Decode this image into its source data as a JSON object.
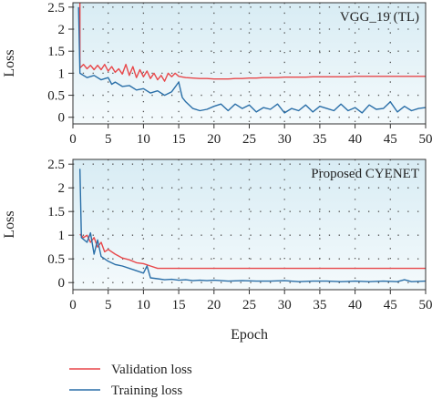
{
  "chart_data": [
    {
      "type": "line",
      "panel_label": "VGG_19 (TL)",
      "xlabel": "",
      "ylabel": "Loss",
      "xlim": [
        0,
        50
      ],
      "ylim": [
        -0.15,
        2.6
      ],
      "xticks": [
        0,
        5,
        10,
        15,
        20,
        25,
        30,
        35,
        40,
        45,
        50
      ],
      "yticks": [
        0,
        0.5,
        1,
        1.5,
        2,
        2.5
      ],
      "ytick_labels": [
        "0",
        "0.5",
        "1",
        "1.5",
        "2",
        "2.5"
      ],
      "grid": "dotted",
      "series": [
        {
          "name": "Validation loss",
          "color": "#e8474a",
          "x": [
            1,
            1,
            1.5,
            2,
            2.5,
            3,
            3.5,
            4,
            4.5,
            5,
            5.5,
            6,
            6.5,
            7,
            7.5,
            8,
            8.5,
            9,
            9.5,
            10,
            10.5,
            11,
            11.5,
            12,
            12.5,
            13,
            13.5,
            14,
            14.5,
            15,
            16,
            17,
            18,
            19,
            20,
            21,
            22,
            23,
            24,
            25,
            26,
            27,
            28,
            29,
            30,
            31,
            32,
            33,
            34,
            35,
            36,
            37,
            38,
            39,
            40,
            41,
            42,
            43,
            44,
            45,
            46,
            47,
            48,
            49,
            50
          ],
          "values": [
            2.6,
            1.12,
            1.2,
            1.1,
            1.18,
            1.08,
            1.18,
            1.08,
            1.2,
            1.05,
            1.15,
            1.02,
            1.1,
            0.98,
            1.2,
            0.95,
            1.15,
            0.9,
            1.08,
            0.92,
            1.05,
            0.88,
            1.0,
            0.85,
            0.95,
            0.82,
            1.0,
            0.92,
            1.0,
            0.93,
            0.9,
            0.89,
            0.88,
            0.88,
            0.87,
            0.87,
            0.87,
            0.88,
            0.88,
            0.89,
            0.89,
            0.9,
            0.9,
            0.9,
            0.91,
            0.91,
            0.91,
            0.91,
            0.92,
            0.92,
            0.92,
            0.92,
            0.92,
            0.92,
            0.93,
            0.93,
            0.93,
            0.93,
            0.93,
            0.93,
            0.93,
            0.93,
            0.93,
            0.93,
            0.93
          ]
        },
        {
          "name": "Training loss",
          "color": "#2a6fa8",
          "x": [
            0.8,
            1,
            2,
            3,
            4,
            5,
            5.5,
            6,
            7,
            8,
            9,
            10,
            11,
            12,
            13,
            14,
            15,
            15.5,
            16,
            17,
            18,
            19,
            20,
            21,
            22,
            23,
            24,
            25,
            26,
            27,
            28,
            29,
            30,
            31,
            32,
            33,
            34,
            35,
            36,
            37,
            38,
            39,
            40,
            41,
            42,
            43,
            44,
            45,
            46,
            47,
            48,
            49,
            50
          ],
          "values": [
            2.5,
            1.0,
            0.9,
            0.95,
            0.85,
            0.9,
            0.75,
            0.8,
            0.7,
            0.72,
            0.62,
            0.65,
            0.55,
            0.6,
            0.5,
            0.58,
            0.8,
            0.45,
            0.35,
            0.2,
            0.15,
            0.18,
            0.25,
            0.3,
            0.15,
            0.3,
            0.2,
            0.28,
            0.12,
            0.22,
            0.18,
            0.3,
            0.1,
            0.2,
            0.15,
            0.28,
            0.12,
            0.25,
            0.2,
            0.15,
            0.3,
            0.15,
            0.22,
            0.1,
            0.28,
            0.18,
            0.2,
            0.35,
            0.12,
            0.25,
            0.15,
            0.2,
            0.22
          ]
        }
      ]
    },
    {
      "type": "line",
      "panel_label": "Proposed CYENET",
      "xlabel": "Epoch",
      "ylabel": "Loss",
      "xlim": [
        0,
        50
      ],
      "ylim": [
        -0.15,
        2.6
      ],
      "xticks": [
        0,
        5,
        10,
        15,
        20,
        25,
        30,
        35,
        40,
        45,
        50
      ],
      "yticks": [
        0,
        0.5,
        1,
        1.5,
        2,
        2.5
      ],
      "ytick_labels": [
        "0",
        "0.5",
        "1",
        "1.5",
        "2",
        "2.5"
      ],
      "grid": "dotted",
      "series": [
        {
          "name": "Validation loss",
          "color": "#e8474a",
          "x": [
            1,
            1.5,
            2,
            2.5,
            3,
            3.5,
            4,
            4.5,
            5,
            6,
            7,
            8,
            9,
            10,
            11,
            12,
            13,
            14,
            15,
            16,
            18,
            20,
            25,
            30,
            35,
            40,
            45,
            50
          ],
          "values": [
            1.02,
            0.95,
            1.0,
            0.85,
            0.95,
            0.75,
            0.85,
            0.65,
            0.7,
            0.6,
            0.52,
            0.48,
            0.42,
            0.4,
            0.35,
            0.3,
            0.3,
            0.3,
            0.3,
            0.3,
            0.3,
            0.3,
            0.3,
            0.3,
            0.3,
            0.3,
            0.3,
            0.3
          ]
        },
        {
          "name": "Training loss",
          "color": "#2a6fa8",
          "x": [
            1,
            1.2,
            2,
            2.5,
            3,
            3.5,
            4,
            5,
            6,
            7,
            8,
            9,
            10,
            10.5,
            11,
            12,
            13,
            14,
            15,
            16,
            17,
            18,
            19,
            20,
            22,
            24,
            26,
            28,
            30,
            32,
            34,
            36,
            38,
            40,
            42,
            44,
            46,
            47,
            48,
            50
          ],
          "values": [
            2.4,
            0.95,
            0.85,
            1.05,
            0.6,
            0.9,
            0.55,
            0.45,
            0.38,
            0.35,
            0.3,
            0.25,
            0.2,
            0.35,
            0.1,
            0.08,
            0.06,
            0.07,
            0.05,
            0.06,
            0.04,
            0.05,
            0.04,
            0.05,
            0.03,
            0.04,
            0.03,
            0.03,
            0.04,
            0.02,
            0.03,
            0.03,
            0.02,
            0.03,
            0.02,
            0.03,
            0.02,
            0.06,
            0.02,
            0.03
          ]
        }
      ]
    }
  ],
  "legend": {
    "placement": "bottom-left",
    "entries": [
      {
        "label": "Validation loss",
        "color": "#e8474a"
      },
      {
        "label": "Training loss",
        "color": "#2a6fa8"
      }
    ]
  }
}
